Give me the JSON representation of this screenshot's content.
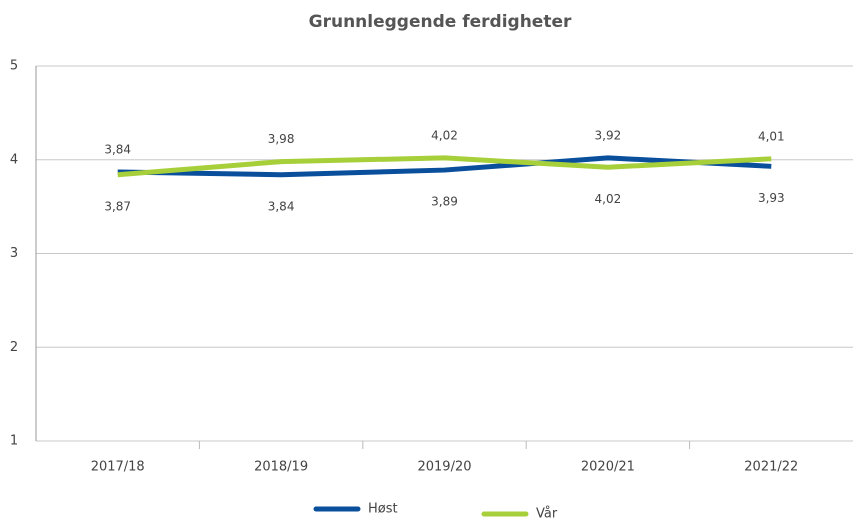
{
  "chart_data": {
    "type": "line",
    "title": "Grunnleggende ferdigheter",
    "categories": [
      "2017/18",
      "2018/19",
      "2019/20",
      "2020/21",
      "2021/22"
    ],
    "series": [
      {
        "name": "Høst",
        "color": "#0a4f9c",
        "values": [
          3.87,
          3.84,
          3.89,
          4.02,
          3.93
        ],
        "value_labels": [
          "3,87",
          "3,84",
          "3,89",
          "4,02",
          "3,93"
        ]
      },
      {
        "name": "Vår",
        "color": "#a6cf3a",
        "values": [
          3.84,
          3.98,
          4.02,
          3.92,
          4.01
        ],
        "value_labels": [
          "3,84",
          "3,98",
          "4,02",
          "3,92",
          "4,01"
        ]
      }
    ],
    "ylim": [
      1,
      5
    ],
    "yticks": [
      1,
      2,
      3,
      4,
      5
    ],
    "grid": true,
    "legend": "bottom"
  }
}
